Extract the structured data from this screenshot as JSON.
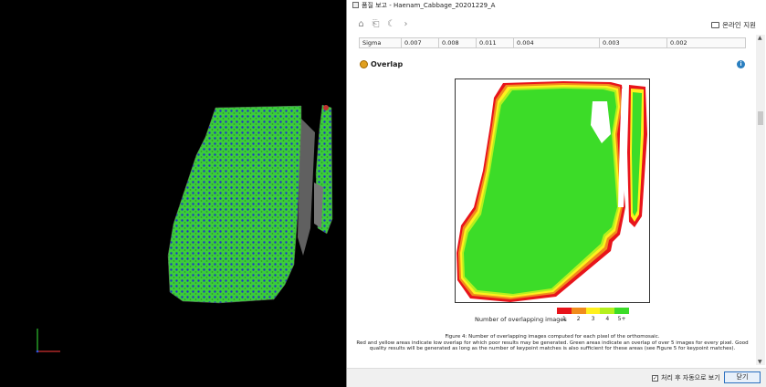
{
  "window": {
    "title": "품질 보고 - Haenam_Cabbage_20201229_A"
  },
  "toolbar": {
    "icons": [
      "home-icon",
      "back-page-icon",
      "moon-icon",
      "forward-icon"
    ],
    "help_label": "온라인 지원"
  },
  "sigma_row": {
    "label": "Sigma",
    "values": [
      "0.007",
      "0.008",
      "0.011",
      "0.004",
      "0.003",
      "0.002"
    ]
  },
  "section": {
    "title": "Overlap"
  },
  "legend": {
    "label": "Number of overlapping images",
    "ticks": [
      "1",
      "2",
      "3",
      "4",
      "5+"
    ],
    "colors": [
      "#e8141b",
      "#f08c1c",
      "#fff01e",
      "#b4f01e",
      "#3cdc28"
    ]
  },
  "caption": {
    "line1": "Figure 4: Number of overlapping images computed for each pixel of the orthomosaic.",
    "line2": "Red and yellow areas indicate low overlap for which poor results may be generated. Green areas indicate an overlap of over 5 images for every pixel. Good quality results will be generated as long as the number of keypoint matches is also sufficient for these areas (see Figure 5 for keypoint matches)."
  },
  "footer": {
    "checkbox_label": "처리 후 자동으로 보기",
    "checkbox_checked": true,
    "close_label": "닫기"
  },
  "colors": {
    "accent": "#2a6fc0",
    "point_green": "#3ccc3c",
    "point_blue": "#1e32c8"
  }
}
